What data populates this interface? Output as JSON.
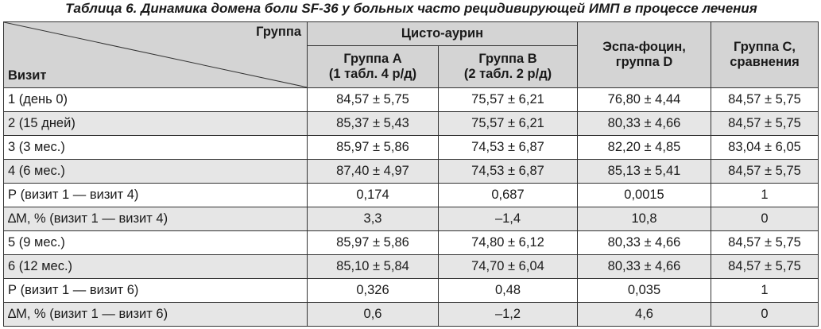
{
  "caption": "Таблица 6. Динамика домена боли SF-36 у больных часто рецидивирующей ИМП в процессе лечения",
  "header": {
    "corner_top": "Группа",
    "corner_bottom": "Визит",
    "group_span": "Цисто-аурин",
    "group_a_line1": "Группа А",
    "group_a_line2": "(1 табл. 4 р/д)",
    "group_b_line1": "Группа В",
    "group_b_line2": "(2 табл. 2 р/д)",
    "group_d_line1": "Эспа-фоцин,",
    "group_d_line2": "группа D",
    "group_c_line1": "Группа С,",
    "group_c_line2": "сравнения"
  },
  "rows": [
    {
      "label": "1 (день 0)",
      "a": "84,57 ± 5,75",
      "b": "75,57 ± 6,21",
      "d": "76,80 ± 4,44",
      "c": "84,57 ± 5,75"
    },
    {
      "label": "2 (15 дней)",
      "a": "85,37 ± 5,43",
      "b": "75,57 ± 6,21",
      "d": "80,33 ± 4,66",
      "c": "84,57 ± 5,75"
    },
    {
      "label": "3 (3 мес.)",
      "a": "85,97 ± 5,86",
      "b": "74,53 ± 6,87",
      "d": "82,20 ± 4,85",
      "c": "83,04 ± 6,05"
    },
    {
      "label": "4 (6 мес.)",
      "a": "87,40 ± 4,97",
      "b": "74,53 ± 6,87",
      "d": "85,13 ± 5,41",
      "c": "84,57 ± 5,75"
    },
    {
      "label": "Р (визит 1 — визит 4)",
      "a": "0,174",
      "b": "0,687",
      "d": "0,0015",
      "c": "1"
    },
    {
      "label": "∆М, % (визит 1 — визит 4)",
      "a": "3,3",
      "b": "–1,4",
      "d": "10,8",
      "c": "0"
    },
    {
      "label": "5 (9 мес.)",
      "a": "85,97 ± 5,86",
      "b": "74,80 ± 6,12",
      "d": "80,33 ± 4,66",
      "c": "84,57 ± 5,75"
    },
    {
      "label": "6 (12 мес.)",
      "a": "85,10 ± 5,84",
      "b": "74,70 ± 6,04",
      "d": "80,33 ± 4,66",
      "c": "84,57 ± 5,75"
    },
    {
      "label": "Р (визит 1 — визит 6)",
      "a": "0,326",
      "b": "0,48",
      "d": "0,035",
      "c": "1"
    },
    {
      "label": "∆М, % (визит 1 — визит 6)",
      "a": "0,6",
      "b": "–1,2",
      "d": "4,6",
      "c": "0"
    }
  ]
}
